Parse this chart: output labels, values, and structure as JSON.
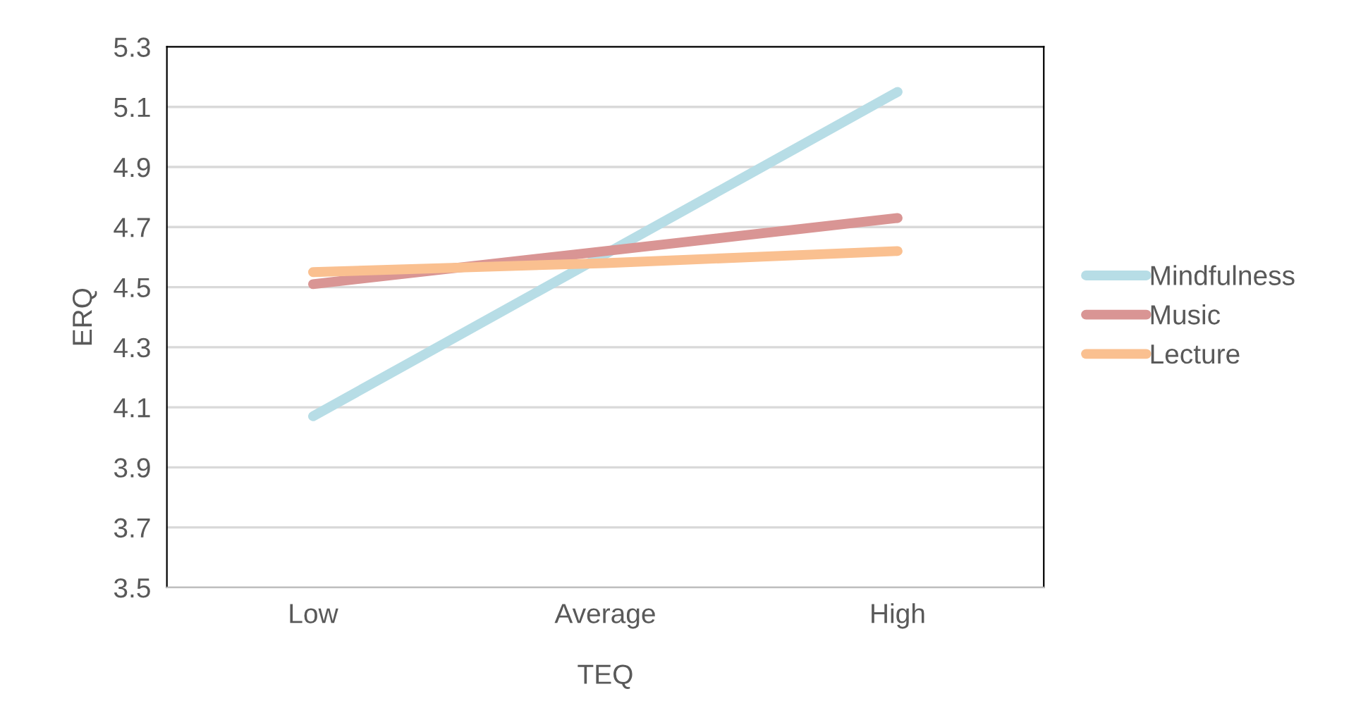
{
  "chart_data": {
    "type": "line",
    "xlabel": "TEQ",
    "ylabel": "ERQ",
    "categories": [
      "Low",
      "Average",
      "High"
    ],
    "series": [
      {
        "name": "Mindfulness",
        "color": "#b7dde6",
        "values": [
          4.07,
          4.61,
          5.15
        ]
      },
      {
        "name": "Music",
        "color": "#d99594",
        "values": [
          4.51,
          4.62,
          4.73
        ]
      },
      {
        "name": "Lecture",
        "color": "#fac090",
        "values": [
          4.55,
          4.58,
          4.62
        ]
      }
    ],
    "ylim": [
      3.5,
      5.3
    ],
    "yticks": [
      3.5,
      3.7,
      3.9,
      4.1,
      4.3,
      4.5,
      4.7,
      4.9,
      5.1,
      5.3
    ],
    "grid": "y",
    "legend": "right",
    "marker": "none",
    "line_style": "solid"
  }
}
